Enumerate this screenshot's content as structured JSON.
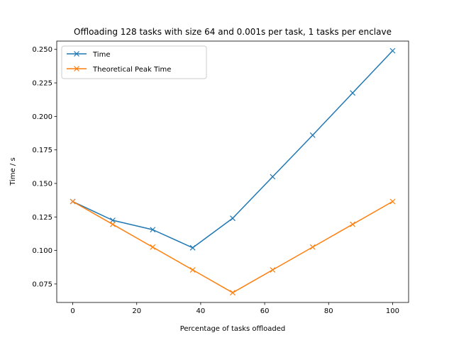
{
  "chart_data": {
    "type": "line",
    "title": "Offloading 128 tasks with size 64 and 0.001s per task, 1 tasks per enclave",
    "xlabel": "Percentage of tasks offloaded",
    "ylabel": "Time / s",
    "xlim": [
      -5,
      105
    ],
    "ylim": [
      0.0612,
      0.2562
    ],
    "xticks": [
      0,
      20,
      40,
      60,
      80,
      100
    ],
    "yticks": [
      0.075,
      0.1,
      0.125,
      0.15,
      0.175,
      0.2,
      0.225,
      0.25
    ],
    "ytick_labels": [
      "0.075",
      "0.100",
      "0.125",
      "0.150",
      "0.175",
      "0.200",
      "0.225",
      "0.250"
    ],
    "x": [
      0,
      12.5,
      25,
      37.5,
      50,
      62.5,
      75,
      87.5,
      100
    ],
    "series": [
      {
        "name": "Time",
        "color": "#1f77b4",
        "marker": "x",
        "values": [
          0.1365,
          0.1225,
          0.1155,
          0.102,
          0.124,
          0.155,
          0.186,
          0.2175,
          0.249
        ]
      },
      {
        "name": "Theoretical Peak Time",
        "color": "#ff7f0e",
        "marker": "x",
        "values": [
          0.1365,
          0.1195,
          0.1025,
          0.0855,
          0.0685,
          0.0855,
          0.1025,
          0.1195,
          0.1365
        ]
      }
    ],
    "legend": "upper-left",
    "grid": false
  }
}
